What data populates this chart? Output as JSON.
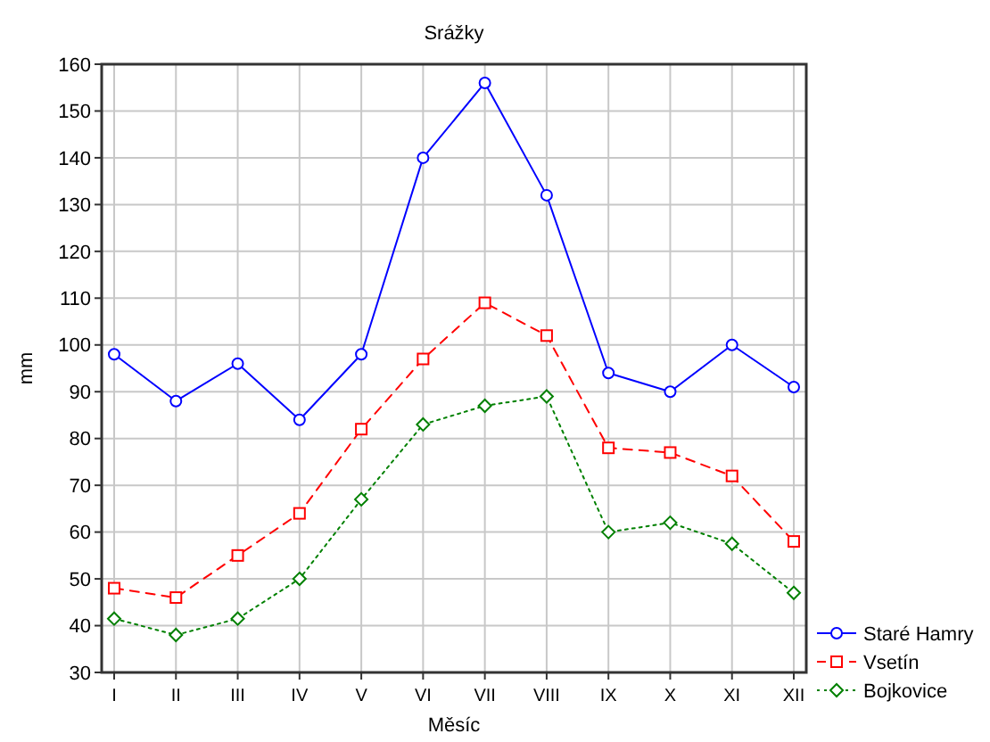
{
  "chart_data": {
    "type": "line",
    "title": "Srážky",
    "xlabel": "Měsíc",
    "ylabel": "mm",
    "categories": [
      "I",
      "II",
      "III",
      "IV",
      "V",
      "VI",
      "VII",
      "VIII",
      "IX",
      "X",
      "XI",
      "XII"
    ],
    "series": [
      {
        "name": "Staré Hamry",
        "color": "#0000ff",
        "marker": "circle",
        "line_style": "solid",
        "values": [
          98,
          88,
          96,
          84,
          98,
          140,
          156,
          132,
          94,
          90,
          100,
          91
        ]
      },
      {
        "name": "Vsetín",
        "color": "#ff0000",
        "marker": "square",
        "line_style": "dashed",
        "values": [
          48,
          46,
          55,
          64,
          82,
          97,
          109,
          102,
          78,
          77,
          72,
          58
        ]
      },
      {
        "name": "Bojkovice",
        "color": "#008000",
        "marker": "diamond",
        "line_style": "dotted",
        "values": [
          41.5,
          38,
          41.5,
          50,
          67,
          83,
          87,
          89,
          60,
          62,
          57.5,
          47
        ]
      }
    ],
    "ylim": [
      30,
      160
    ],
    "yticks": [
      30,
      40,
      50,
      60,
      70,
      80,
      90,
      100,
      110,
      120,
      130,
      140,
      150,
      160
    ],
    "grid": true,
    "legend": "bottom right"
  }
}
